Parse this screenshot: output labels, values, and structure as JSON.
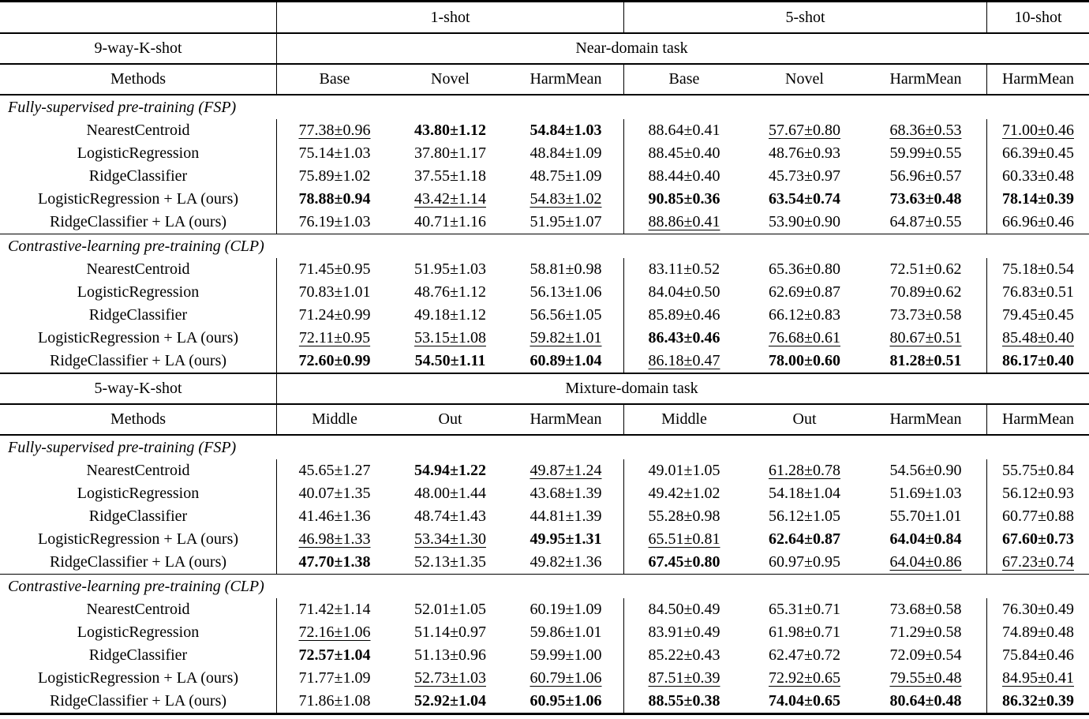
{
  "page": {
    "background": "#ffffff",
    "text_color": "#000000",
    "rule_color": "#000000"
  },
  "table": {
    "shot_groups": [
      {
        "label": "1-shot"
      },
      {
        "label": "5-shot"
      },
      {
        "label": "10-shot"
      }
    ],
    "sections": [
      {
        "way_label": "9-way-K-shot",
        "task_label": "Near-domain task",
        "methods_header": "Methods",
        "column_headers": [
          "Base",
          "Novel",
          "HarmMean",
          "Base",
          "Novel",
          "HarmMean",
          "HarmMean"
        ],
        "blocks": [
          {
            "title": "Fully-supervised pre-training (FSP)",
            "rows": [
              {
                "method": "NearestCentroid",
                "values": [
                  [
                    "77.38±0.96",
                    "u"
                  ],
                  [
                    "43.80±1.12",
                    "b"
                  ],
                  [
                    "54.84±1.03",
                    "b"
                  ],
                  [
                    "88.64±0.41",
                    "n"
                  ],
                  [
                    "57.67±0.80",
                    "u"
                  ],
                  [
                    "68.36±0.53",
                    "u"
                  ],
                  [
                    "71.00±0.46",
                    "u"
                  ]
                ]
              },
              {
                "method": "LogisticRegression",
                "values": [
                  [
                    "75.14±1.03",
                    "n"
                  ],
                  [
                    "37.80±1.17",
                    "n"
                  ],
                  [
                    "48.84±1.09",
                    "n"
                  ],
                  [
                    "88.45±0.40",
                    "n"
                  ],
                  [
                    "48.76±0.93",
                    "n"
                  ],
                  [
                    "59.99±0.55",
                    "n"
                  ],
                  [
                    "66.39±0.45",
                    "n"
                  ]
                ]
              },
              {
                "method": "RidgeClassifier",
                "values": [
                  [
                    "75.89±1.02",
                    "n"
                  ],
                  [
                    "37.55±1.18",
                    "n"
                  ],
                  [
                    "48.75±1.09",
                    "n"
                  ],
                  [
                    "88.44±0.40",
                    "n"
                  ],
                  [
                    "45.73±0.97",
                    "n"
                  ],
                  [
                    "56.96±0.57",
                    "n"
                  ],
                  [
                    "60.33±0.48",
                    "n"
                  ]
                ]
              },
              {
                "method": "LogisticRegression + LA (ours)",
                "values": [
                  [
                    "78.88±0.94",
                    "b"
                  ],
                  [
                    "43.42±1.14",
                    "u"
                  ],
                  [
                    "54.83±1.02",
                    "u"
                  ],
                  [
                    "90.85±0.36",
                    "b"
                  ],
                  [
                    "63.54±0.74",
                    "b"
                  ],
                  [
                    "73.63±0.48",
                    "b"
                  ],
                  [
                    "78.14±0.39",
                    "b"
                  ]
                ]
              },
              {
                "method": "RidgeClassifier + LA (ours)",
                "values": [
                  [
                    "76.19±1.03",
                    "n"
                  ],
                  [
                    "40.71±1.16",
                    "n"
                  ],
                  [
                    "51.95±1.07",
                    "n"
                  ],
                  [
                    "88.86±0.41",
                    "u"
                  ],
                  [
                    "53.90±0.90",
                    "n"
                  ],
                  [
                    "64.87±0.55",
                    "n"
                  ],
                  [
                    "66.96±0.46",
                    "n"
                  ]
                ]
              }
            ]
          },
          {
            "title": "Contrastive-learning pre-training (CLP)",
            "rows": [
              {
                "method": "NearestCentroid",
                "values": [
                  [
                    "71.45±0.95",
                    "n"
                  ],
                  [
                    "51.95±1.03",
                    "n"
                  ],
                  [
                    "58.81±0.98",
                    "n"
                  ],
                  [
                    "83.11±0.52",
                    "n"
                  ],
                  [
                    "65.36±0.80",
                    "n"
                  ],
                  [
                    "72.51±0.62",
                    "n"
                  ],
                  [
                    "75.18±0.54",
                    "n"
                  ]
                ]
              },
              {
                "method": "LogisticRegression",
                "values": [
                  [
                    "70.83±1.01",
                    "n"
                  ],
                  [
                    "48.76±1.12",
                    "n"
                  ],
                  [
                    "56.13±1.06",
                    "n"
                  ],
                  [
                    "84.04±0.50",
                    "n"
                  ],
                  [
                    "62.69±0.87",
                    "n"
                  ],
                  [
                    "70.89±0.62",
                    "n"
                  ],
                  [
                    "76.83±0.51",
                    "n"
                  ]
                ]
              },
              {
                "method": "RidgeClassifier",
                "values": [
                  [
                    "71.24±0.99",
                    "n"
                  ],
                  [
                    "49.18±1.12",
                    "n"
                  ],
                  [
                    "56.56±1.05",
                    "n"
                  ],
                  [
                    "85.89±0.46",
                    "n"
                  ],
                  [
                    "66.12±0.83",
                    "n"
                  ],
                  [
                    "73.73±0.58",
                    "n"
                  ],
                  [
                    "79.45±0.45",
                    "n"
                  ]
                ]
              },
              {
                "method": "LogisticRegression + LA (ours)",
                "values": [
                  [
                    "72.11±0.95",
                    "u"
                  ],
                  [
                    "53.15±1.08",
                    "u"
                  ],
                  [
                    "59.82±1.01",
                    "u"
                  ],
                  [
                    "86.43±0.46",
                    "b"
                  ],
                  [
                    "76.68±0.61",
                    "u"
                  ],
                  [
                    "80.67±0.51",
                    "u"
                  ],
                  [
                    "85.48±0.40",
                    "u"
                  ]
                ]
              },
              {
                "method": "RidgeClassifier + LA (ours)",
                "values": [
                  [
                    "72.60±0.99",
                    "b"
                  ],
                  [
                    "54.50±1.11",
                    "b"
                  ],
                  [
                    "60.89±1.04",
                    "b"
                  ],
                  [
                    "86.18±0.47",
                    "u"
                  ],
                  [
                    "78.00±0.60",
                    "b"
                  ],
                  [
                    "81.28±0.51",
                    "b"
                  ],
                  [
                    "86.17±0.40",
                    "b"
                  ]
                ]
              }
            ]
          }
        ]
      },
      {
        "way_label": "5-way-K-shot",
        "task_label": "Mixture-domain task",
        "methods_header": "Methods",
        "column_headers": [
          "Middle",
          "Out",
          "HarmMean",
          "Middle",
          "Out",
          "HarmMean",
          "HarmMean"
        ],
        "blocks": [
          {
            "title": "Fully-supervised pre-training (FSP)",
            "rows": [
              {
                "method": "NearestCentroid",
                "values": [
                  [
                    "45.65±1.27",
                    "n"
                  ],
                  [
                    "54.94±1.22",
                    "b"
                  ],
                  [
                    "49.87±1.24",
                    "u"
                  ],
                  [
                    "49.01±1.05",
                    "n"
                  ],
                  [
                    "61.28±0.78",
                    "u"
                  ],
                  [
                    "54.56±0.90",
                    "n"
                  ],
                  [
                    "55.75±0.84",
                    "n"
                  ]
                ]
              },
              {
                "method": "LogisticRegression",
                "values": [
                  [
                    "40.07±1.35",
                    "n"
                  ],
                  [
                    "48.00±1.44",
                    "n"
                  ],
                  [
                    "43.68±1.39",
                    "n"
                  ],
                  [
                    "49.42±1.02",
                    "n"
                  ],
                  [
                    "54.18±1.04",
                    "n"
                  ],
                  [
                    "51.69±1.03",
                    "n"
                  ],
                  [
                    "56.12±0.93",
                    "n"
                  ]
                ]
              },
              {
                "method": "RidgeClassifier",
                "values": [
                  [
                    "41.46±1.36",
                    "n"
                  ],
                  [
                    "48.74±1.43",
                    "n"
                  ],
                  [
                    "44.81±1.39",
                    "n"
                  ],
                  [
                    "55.28±0.98",
                    "n"
                  ],
                  [
                    "56.12±1.05",
                    "n"
                  ],
                  [
                    "55.70±1.01",
                    "n"
                  ],
                  [
                    "60.77±0.88",
                    "n"
                  ]
                ]
              },
              {
                "method": "LogisticRegression + LA (ours)",
                "values": [
                  [
                    "46.98±1.33",
                    "u"
                  ],
                  [
                    "53.34±1.30",
                    "u"
                  ],
                  [
                    "49.95±1.31",
                    "b"
                  ],
                  [
                    "65.51±0.81",
                    "u"
                  ],
                  [
                    "62.64±0.87",
                    "b"
                  ],
                  [
                    "64.04±0.84",
                    "b"
                  ],
                  [
                    "67.60±0.73",
                    "b"
                  ]
                ]
              },
              {
                "method": "RidgeClassifier + LA (ours)",
                "values": [
                  [
                    "47.70±1.38",
                    "b"
                  ],
                  [
                    "52.13±1.35",
                    "n"
                  ],
                  [
                    "49.82±1.36",
                    "n"
                  ],
                  [
                    "67.45±0.80",
                    "b"
                  ],
                  [
                    "60.97±0.95",
                    "n"
                  ],
                  [
                    "64.04±0.86",
                    "u"
                  ],
                  [
                    "67.23±0.74",
                    "u"
                  ]
                ]
              }
            ]
          },
          {
            "title": "Contrastive-learning pre-training (CLP)",
            "rows": [
              {
                "method": "NearestCentroid",
                "values": [
                  [
                    "71.42±1.14",
                    "n"
                  ],
                  [
                    "52.01±1.05",
                    "n"
                  ],
                  [
                    "60.19±1.09",
                    "n"
                  ],
                  [
                    "84.50±0.49",
                    "n"
                  ],
                  [
                    "65.31±0.71",
                    "n"
                  ],
                  [
                    "73.68±0.58",
                    "n"
                  ],
                  [
                    "76.30±0.49",
                    "n"
                  ]
                ]
              },
              {
                "method": "LogisticRegression",
                "values": [
                  [
                    "72.16±1.06",
                    "u"
                  ],
                  [
                    "51.14±0.97",
                    "n"
                  ],
                  [
                    "59.86±1.01",
                    "n"
                  ],
                  [
                    "83.91±0.49",
                    "n"
                  ],
                  [
                    "61.98±0.71",
                    "n"
                  ],
                  [
                    "71.29±0.58",
                    "n"
                  ],
                  [
                    "74.89±0.48",
                    "n"
                  ]
                ]
              },
              {
                "method": "RidgeClassifier",
                "values": [
                  [
                    "72.57±1.04",
                    "b"
                  ],
                  [
                    "51.13±0.96",
                    "n"
                  ],
                  [
                    "59.99±1.00",
                    "n"
                  ],
                  [
                    "85.22±0.43",
                    "n"
                  ],
                  [
                    "62.47±0.72",
                    "n"
                  ],
                  [
                    "72.09±0.54",
                    "n"
                  ],
                  [
                    "75.84±0.46",
                    "n"
                  ]
                ]
              },
              {
                "method": "LogisticRegression + LA (ours)",
                "values": [
                  [
                    "71.77±1.09",
                    "n"
                  ],
                  [
                    "52.73±1.03",
                    "u"
                  ],
                  [
                    "60.79±1.06",
                    "u"
                  ],
                  [
                    "87.51±0.39",
                    "u"
                  ],
                  [
                    "72.92±0.65",
                    "u"
                  ],
                  [
                    "79.55±0.48",
                    "u"
                  ],
                  [
                    "84.95±0.41",
                    "u"
                  ]
                ]
              },
              {
                "method": "RidgeClassifier + LA (ours)",
                "values": [
                  [
                    "71.86±1.08",
                    "n"
                  ],
                  [
                    "52.92±1.04",
                    "b"
                  ],
                  [
                    "60.95±1.06",
                    "b"
                  ],
                  [
                    "88.55±0.38",
                    "b"
                  ],
                  [
                    "74.04±0.65",
                    "b"
                  ],
                  [
                    "80.64±0.48",
                    "b"
                  ],
                  [
                    "86.32±0.39",
                    "b"
                  ]
                ]
              }
            ]
          }
        ]
      }
    ]
  }
}
